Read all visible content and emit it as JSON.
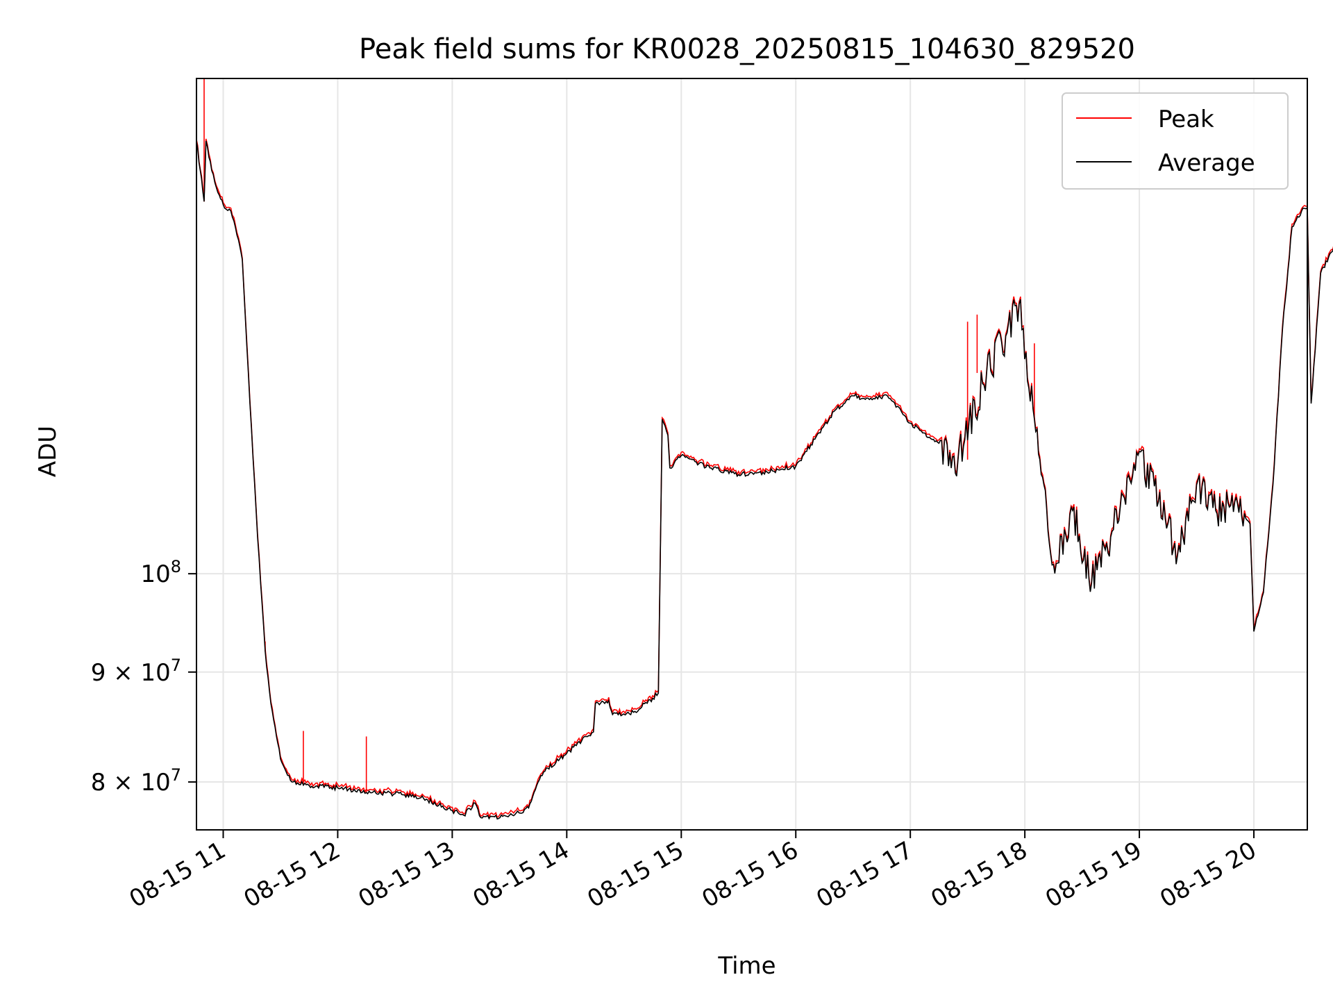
{
  "chart_data": {
    "type": "line",
    "title": "Peak field sums for KR0028_20250815_104630_829520",
    "xlabel": "Time",
    "ylabel": "ADU",
    "y_scale": "log",
    "grid": true,
    "legend_position": "top-right",
    "xlim": [
      "2025-08-15 10:46",
      "2025-08-15 20:28"
    ],
    "ylim": [
      76000000,
      170000000
    ],
    "x_ticks": [
      {
        "t": "2025-08-15 11:00",
        "label": "08-15 11"
      },
      {
        "t": "2025-08-15 12:00",
        "label": "08-15 12"
      },
      {
        "t": "2025-08-15 13:00",
        "label": "08-15 13"
      },
      {
        "t": "2025-08-15 14:00",
        "label": "08-15 14"
      },
      {
        "t": "2025-08-15 15:00",
        "label": "08-15 15"
      },
      {
        "t": "2025-08-15 16:00",
        "label": "08-15 16"
      },
      {
        "t": "2025-08-15 17:00",
        "label": "08-15 17"
      },
      {
        "t": "2025-08-15 18:00",
        "label": "08-15 18"
      },
      {
        "t": "2025-08-15 19:00",
        "label": "08-15 19"
      },
      {
        "t": "2025-08-15 20:00",
        "label": "08-15 20"
      }
    ],
    "y_ticks": [
      {
        "value": 80000000,
        "mantissa": "8",
        "exponent": "7"
      },
      {
        "value": 90000000,
        "mantissa": "9",
        "exponent": "7"
      },
      {
        "value": 100000000,
        "mantissa": "",
        "exponent": "8"
      }
    ],
    "series": [
      {
        "name": "Peak",
        "color": "#ff0000",
        "spikes": [
          {
            "t": "2025-08-15 10:50",
            "y": 170000000
          },
          {
            "t": "2025-08-15 11:22",
            "y": 93000000
          },
          {
            "t": "2025-08-15 11:42",
            "y": 84500000
          },
          {
            "t": "2025-08-15 12:15",
            "y": 84000000
          },
          {
            "t": "2025-08-15 17:30",
            "y": 131000000
          },
          {
            "t": "2025-08-15 17:35",
            "y": 132000000
          },
          {
            "t": "2025-08-15 18:05",
            "y": 128000000
          }
        ]
      },
      {
        "name": "Average",
        "color": "#000000",
        "points": [
          [
            "2025-08-15 10:46",
            159000000
          ],
          [
            "2025-08-15 10:48",
            154000000
          ],
          [
            "2025-08-15 10:50",
            149000000
          ],
          [
            "2025-08-15 10:51",
            159000000
          ],
          [
            "2025-08-15 10:54",
            154000000
          ],
          [
            "2025-08-15 10:58",
            150000000
          ],
          [
            "2025-08-15 11:00",
            148500000
          ],
          [
            "2025-08-15 11:04",
            147500000
          ],
          [
            "2025-08-15 11:08",
            143000000
          ],
          [
            "2025-08-15 11:10",
            140000000
          ],
          [
            "2025-08-15 11:14",
            120000000
          ],
          [
            "2025-08-15 11:18",
            104000000
          ],
          [
            "2025-08-15 11:22",
            92000000
          ],
          [
            "2025-08-15 11:25",
            87000000
          ],
          [
            "2025-08-15 11:30",
            82000000
          ],
          [
            "2025-08-15 11:36",
            80000000
          ],
          [
            "2025-08-15 11:45",
            79700000
          ],
          [
            "2025-08-15 12:00",
            79500000
          ],
          [
            "2025-08-15 12:15",
            79100000
          ],
          [
            "2025-08-15 12:30",
            79000000
          ],
          [
            "2025-08-15 12:45",
            78600000
          ],
          [
            "2025-08-15 13:00",
            77600000
          ],
          [
            "2025-08-15 13:06",
            77200000
          ],
          [
            "2025-08-15 13:12",
            78200000
          ],
          [
            "2025-08-15 13:15",
            77000000
          ],
          [
            "2025-08-15 13:25",
            77000000
          ],
          [
            "2025-08-15 13:35",
            77400000
          ],
          [
            "2025-08-15 13:40",
            77800000
          ],
          [
            "2025-08-15 13:45",
            80000000
          ],
          [
            "2025-08-15 13:50",
            81200000
          ],
          [
            "2025-08-15 14:00",
            82500000
          ],
          [
            "2025-08-15 14:10",
            84000000
          ],
          [
            "2025-08-15 14:14",
            84400000
          ],
          [
            "2025-08-15 14:15",
            87000000
          ],
          [
            "2025-08-15 14:22",
            87300000
          ],
          [
            "2025-08-15 14:24",
            86000000
          ],
          [
            "2025-08-15 14:35",
            86200000
          ],
          [
            "2025-08-15 14:45",
            87500000
          ],
          [
            "2025-08-15 14:48",
            88000000
          ],
          [
            "2025-08-15 14:50",
            118000000
          ],
          [
            "2025-08-15 14:53",
            116000000
          ],
          [
            "2025-08-15 14:54",
            112000000
          ],
          [
            "2025-08-15 15:00",
            113500000
          ],
          [
            "2025-08-15 15:15",
            112000000
          ],
          [
            "2025-08-15 15:30",
            111200000
          ],
          [
            "2025-08-15 15:45",
            111500000
          ],
          [
            "2025-08-15 16:00",
            112200000
          ],
          [
            "2025-08-15 16:10",
            115500000
          ],
          [
            "2025-08-15 16:20",
            119000000
          ],
          [
            "2025-08-15 16:30",
            121000000
          ],
          [
            "2025-08-15 16:40",
            120500000
          ],
          [
            "2025-08-15 16:48",
            121000000
          ],
          [
            "2025-08-15 17:00",
            117500000
          ],
          [
            "2025-08-15 17:15",
            115000000
          ],
          [
            "2025-08-15 17:25",
            113000000
          ],
          [
            "2025-08-15 17:40",
            124000000
          ],
          [
            "2025-08-15 17:50",
            129000000
          ],
          [
            "2025-08-15 17:57",
            133500000
          ],
          [
            "2025-08-15 18:05",
            118000000
          ],
          [
            "2025-08-15 18:10",
            110000000
          ],
          [
            "2025-08-15 18:15",
            101000000
          ],
          [
            "2025-08-15 18:25",
            107000000
          ],
          [
            "2025-08-15 18:35",
            99000000
          ],
          [
            "2025-08-15 18:45",
            104000000
          ],
          [
            "2025-08-15 19:00",
            114000000
          ],
          [
            "2025-08-15 19:10",
            108000000
          ],
          [
            "2025-08-15 19:20",
            102000000
          ],
          [
            "2025-08-15 19:30",
            110000000
          ],
          [
            "2025-08-15 19:40",
            107000000
          ],
          [
            "2025-08-15 19:50",
            108000000
          ],
          [
            "2025-08-15 19:58",
            105500000
          ],
          [
            "2025-08-15 20:00",
            94000000
          ],
          [
            "2025-08-15 20:05",
            98000000
          ],
          [
            "2025-08-15 20:10",
            110000000
          ],
          [
            "2025-08-15 20:15",
            130000000
          ],
          [
            "2025-08-15 20:20",
            145000000
          ],
          [
            "2025-08-15 20:25",
            147500000
          ],
          [
            "2025-08-15 20:28",
            148000000
          ],
          [
            "2025-08-15 20:30",
            120000000
          ],
          [
            "2025-08-15 20:35",
            138000000
          ],
          [
            "2025-08-15 20:42",
            142000000
          ],
          [
            "2025-08-15 20:46",
            149000000
          ]
        ]
      }
    ]
  }
}
